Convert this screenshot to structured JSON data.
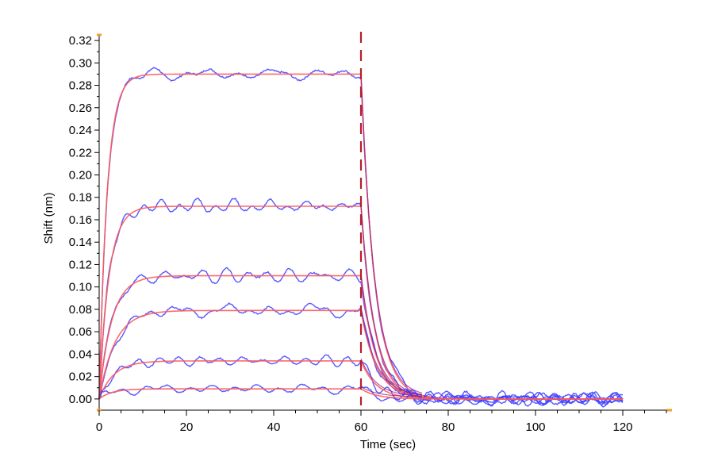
{
  "chart_data": {
    "type": "line",
    "title": "",
    "xlabel": "Time (sec)",
    "ylabel": "Shift (nm)",
    "xlim": [
      0,
      130
    ],
    "ylim": [
      -0.01,
      0.325
    ],
    "x_ticks": [
      0,
      20,
      40,
      60,
      80,
      100,
      120
    ],
    "y_ticks": [
      0.0,
      0.02,
      0.04,
      0.06,
      0.08,
      0.1,
      0.12,
      0.14,
      0.16,
      0.18,
      0.2,
      0.22,
      0.24,
      0.26,
      0.28,
      0.3,
      0.32
    ],
    "x_tick_labels": [
      "0",
      "20",
      "40",
      "60",
      "80",
      "100",
      "120"
    ],
    "y_tick_labels": [
      "0.00",
      "0.02",
      "0.04",
      "0.06",
      "0.08",
      "0.10",
      "0.12",
      "0.14",
      "0.16",
      "0.18",
      "0.20",
      "0.22",
      "0.24",
      "0.26",
      "0.28",
      "0.30",
      "0.32"
    ],
    "grid": false,
    "legend": "none",
    "association_end": 60,
    "vline_x": 60,
    "colors": {
      "measured": "#3b3bff",
      "fit": "#ff5a5a",
      "overlap": "#8b1a8b",
      "vline": "#b3202a",
      "axis_marker": "#f0a030"
    },
    "series": [
      {
        "plateau": 0.29,
        "ka_rate": 0.55,
        "kd_rate": 0.32,
        "noise": 0.0038
      },
      {
        "plateau": 0.172,
        "ka_rate": 0.45,
        "kd_rate": 0.32,
        "noise": 0.0035
      },
      {
        "plateau": 0.11,
        "ka_rate": 0.35,
        "kd_rate": 0.3,
        "noise": 0.003
      },
      {
        "plateau": 0.079,
        "ka_rate": 0.28,
        "kd_rate": 0.28,
        "noise": 0.003
      },
      {
        "plateau": 0.034,
        "ka_rate": 0.3,
        "kd_rate": 0.28,
        "noise": 0.0028
      },
      {
        "plateau": 0.009,
        "ka_rate": 0.35,
        "kd_rate": 0.28,
        "noise": 0.0025
      }
    ]
  }
}
